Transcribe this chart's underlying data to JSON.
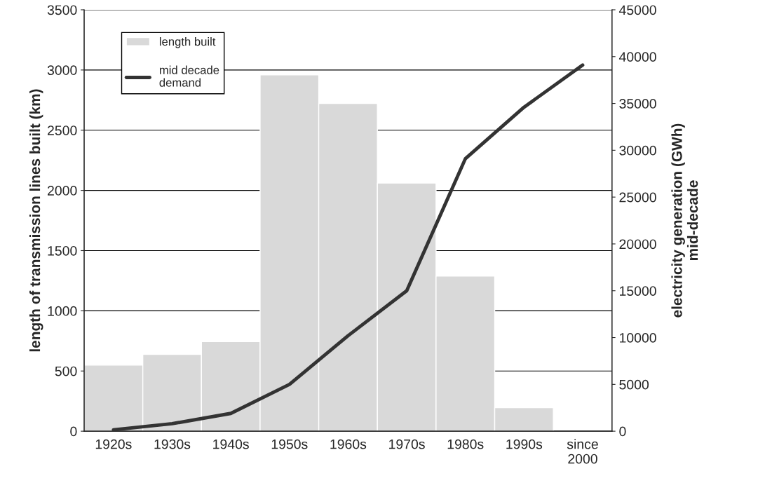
{
  "chart_data": {
    "type": "bar",
    "ylabel": "length of transmission lines built (km)",
    "y2label": "electricity generation (GWh)\nmid-decade",
    "categories": [
      "1920s",
      "1930s",
      "1940s",
      "1950s",
      "1960s",
      "1970s",
      "1980s",
      "1990s",
      "since\n2000"
    ],
    "series": [
      {
        "name": "length built",
        "color": "#d9d9d9",
        "values": [
          549,
          638,
          744,
          2960,
          2723,
          2061,
          1288,
          195,
          null
        ]
      },
      {
        "name": "mid decade\ndemand",
        "type": "line",
        "axis": "y2",
        "color": "#333333",
        "values": [
          150,
          800,
          1900,
          5000,
          10200,
          15000,
          29100,
          34600,
          39100
        ]
      }
    ],
    "ylim": [
      0,
      3500
    ],
    "yticks": [
      0,
      500,
      1000,
      1500,
      2000,
      2500,
      3000,
      3500
    ],
    "y2lim": [
      0,
      45000
    ],
    "y2ticks": [
      0,
      5000,
      10000,
      15000,
      20000,
      25000,
      30000,
      35000,
      40000,
      45000
    ],
    "grid": "y",
    "legend": "top left",
    "line_style": "solid",
    "marker": "none"
  }
}
